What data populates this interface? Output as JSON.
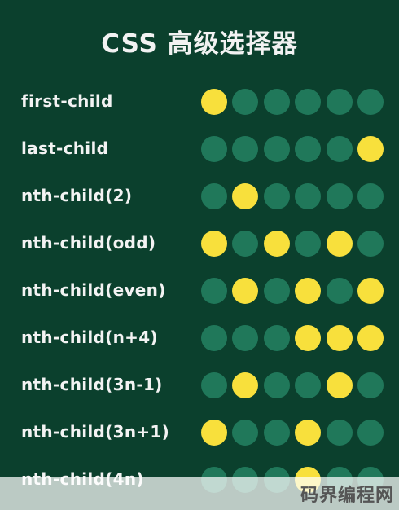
{
  "title": "CSS 高级选择器",
  "colors": {
    "background": "#0b402d",
    "dot_off": "#20785a",
    "dot_on": "#f8e03c"
  },
  "rows": [
    {
      "label": "first-child",
      "dots": [
        1,
        0,
        0,
        0,
        0,
        0
      ]
    },
    {
      "label": "last-child",
      "dots": [
        0,
        0,
        0,
        0,
        0,
        1
      ]
    },
    {
      "label": "nth-child(2)",
      "dots": [
        0,
        1,
        0,
        0,
        0,
        0
      ]
    },
    {
      "label": "nth-child(odd)",
      "dots": [
        1,
        0,
        1,
        0,
        1,
        0
      ]
    },
    {
      "label": "nth-child(even)",
      "dots": [
        0,
        1,
        0,
        1,
        0,
        1
      ]
    },
    {
      "label": "nth-child(n+4)",
      "dots": [
        0,
        0,
        0,
        1,
        1,
        1
      ]
    },
    {
      "label": "nth-child(3n-1)",
      "dots": [
        0,
        1,
        0,
        0,
        1,
        0
      ]
    },
    {
      "label": "nth-child(3n+1)",
      "dots": [
        1,
        0,
        0,
        1,
        0,
        0
      ]
    },
    {
      "label": "nth-child(4n)",
      "dots": [
        0,
        0,
        0,
        1,
        0,
        0
      ]
    }
  ],
  "watermark": "码界编程网"
}
